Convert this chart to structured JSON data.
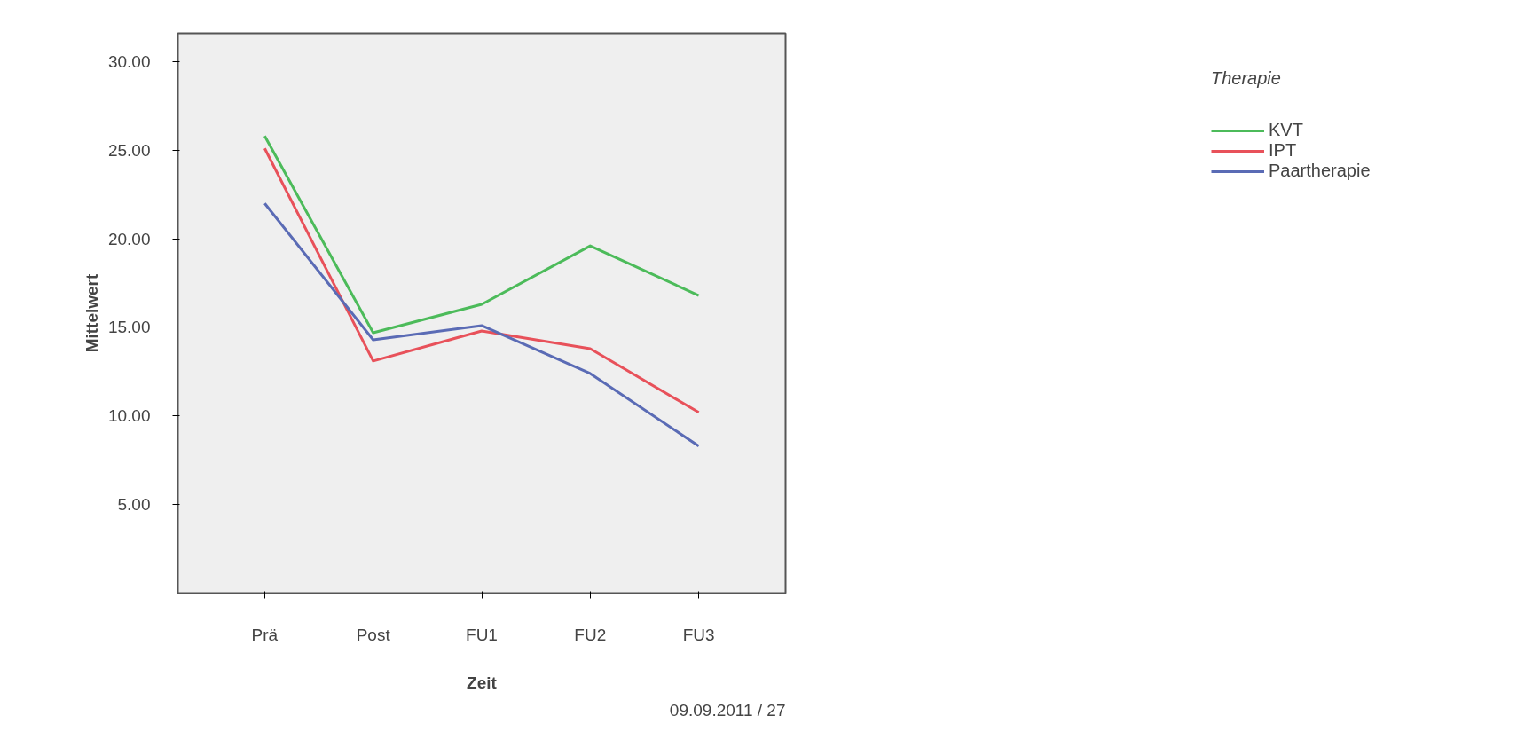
{
  "chart_data": {
    "type": "line",
    "xlabel": "Zeit",
    "ylabel": "Mittelwert",
    "legend_title": "Therapie",
    "categories": [
      "Prä",
      "Post",
      "FU1",
      "FU2",
      "FU3"
    ],
    "series": [
      {
        "name": "KVT",
        "color": "#4cbb5a",
        "values": [
          25.8,
          14.7,
          16.3,
          19.6,
          16.8
        ]
      },
      {
        "name": "IPT",
        "color": "#e8515a",
        "values": [
          25.1,
          13.1,
          14.8,
          13.8,
          10.2
        ]
      },
      {
        "name": "Paartherapie",
        "color": "#5a6bb5",
        "values": [
          22.0,
          14.3,
          15.1,
          12.4,
          8.3
        ]
      }
    ],
    "ylim": [
      0,
      31.6
    ],
    "yticks": [
      {
        "value": 5,
        "label": "5.00"
      },
      {
        "value": 10,
        "label": "10.00"
      },
      {
        "value": 15,
        "label": "15.00"
      },
      {
        "value": 20,
        "label": "20.00"
      },
      {
        "value": 25,
        "label": "25.00"
      },
      {
        "value": 30,
        "label": "30.00"
      }
    ],
    "grid": false,
    "legend": "top right",
    "line_style": "solid",
    "annotations": [
      "09.09.2011 / 27"
    ]
  }
}
